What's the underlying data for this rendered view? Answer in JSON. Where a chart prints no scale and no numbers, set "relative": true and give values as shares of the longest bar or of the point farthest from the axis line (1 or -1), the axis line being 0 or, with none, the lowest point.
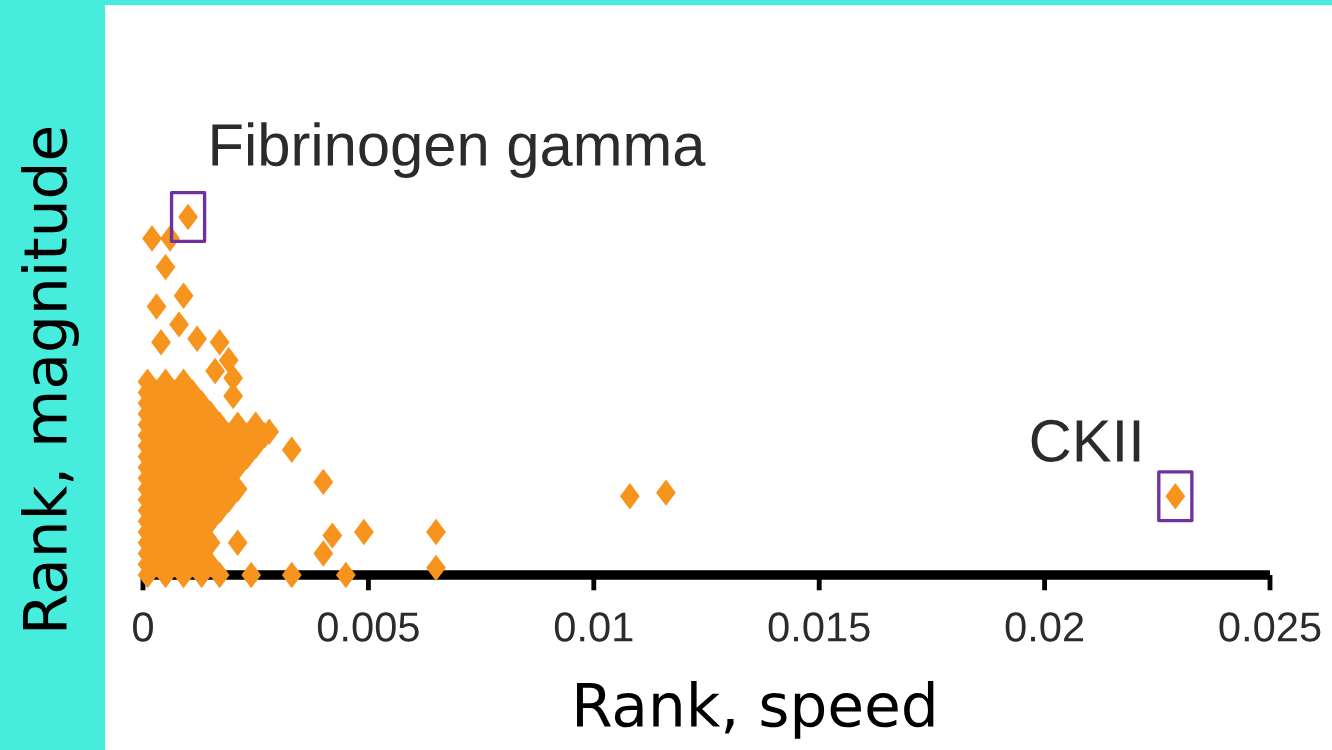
{
  "chart_data": {
    "type": "scatter",
    "relative": true,
    "xlabel": "Rank, speed",
    "ylabel": "Rank, magnitude",
    "xlim": [
      0,
      0.025
    ],
    "xticks": [
      0,
      0.005,
      0.01,
      0.015,
      0.02,
      0.025
    ],
    "tick_labels": "x",
    "marker": "diamond",
    "annotations": [
      {
        "text": "Fibrinogen gamma",
        "x": 0.001,
        "y": 1
      },
      {
        "text": "CKII",
        "x": 0.0229,
        "y": 0.22
      }
    ],
    "series": [
      {
        "color": "#f7941d",
        "x": [
          0.001,
          0.0229,
          0.0108,
          0.0116,
          0.0065,
          0.0065,
          0.0049,
          0.0045,
          0.0042,
          0.004,
          0.004,
          0.0033,
          0.0033,
          0.0024,
          0.0021,
          0.0002,
          0.0006,
          0.0005,
          0.0009,
          0.0003,
          0.0008,
          0.0004,
          0.0012,
          0.0017,
          0.0019,
          0.002,
          0.002,
          0.0016,
          0.0028,
          0.0001,
          0.0005,
          0.0009,
          0.0013,
          0.0017,
          0.0001,
          0.0003,
          0.0007,
          0.0011,
          0.0015,
          0.0001,
          0.0005,
          0.0009,
          0.0013,
          0.0001,
          0.0003,
          0.0007,
          0.0011,
          0.0015,
          0.0001,
          0.0005,
          0.0009,
          0.0013,
          0.0001,
          0.0003,
          0.0007,
          0.0011,
          0.0015,
          0.0001,
          0.0005,
          0.0009,
          0.0013,
          0.0017,
          0.0001,
          0.0003,
          0.0007,
          0.0011,
          0.0015,
          0.0019,
          0.0001,
          0.0005,
          0.0009,
          0.0013,
          0.0017,
          0.0021,
          0.0001,
          0.0003,
          0.0007,
          0.0011,
          0.0015,
          0.0019,
          0.0001,
          0.0005,
          0.0009,
          0.0013,
          0.0017,
          0.0021,
          0.0001,
          0.0003,
          0.0007,
          0.0011,
          0.0015,
          0.0019,
          0.0023,
          0.0001,
          0.0005,
          0.0009,
          0.0013,
          0.0017,
          0.0021,
          0.0025,
          0.0001,
          0.0003,
          0.0007,
          0.0011,
          0.0015,
          0.0019,
          0.0023,
          0.0027,
          0.0001,
          0.0005,
          0.0009,
          0.0013,
          0.0017,
          0.0021,
          0.0025,
          0.0001,
          0.0003,
          0.0007,
          0.0011,
          0.0015,
          0.0001,
          0.0005,
          0.0009,
          0.0013,
          0.0001,
          0.0003,
          0.0007,
          0.0011,
          0.0001,
          0.0005,
          0.0009
        ],
        "values": [
          1,
          0.22,
          0.22,
          0.23,
          0.12,
          0.02,
          0.12,
          0,
          0.11,
          0.06,
          0.26,
          0.35,
          0,
          0,
          0.09,
          0.94,
          0.94,
          0.86,
          0.78,
          0.75,
          0.7,
          0.65,
          0.66,
          0.65,
          0.6,
          0.55,
          0.5,
          0.57,
          0.4,
          0,
          0,
          0,
          0,
          0,
          0.03,
          0.03,
          0.03,
          0.03,
          0.03,
          0.06,
          0.06,
          0.06,
          0.06,
          0.09,
          0.09,
          0.09,
          0.09,
          0.09,
          0.12,
          0.12,
          0.12,
          0.12,
          0.15,
          0.15,
          0.15,
          0.15,
          0.15,
          0.18,
          0.18,
          0.18,
          0.18,
          0.18,
          0.21,
          0.21,
          0.21,
          0.21,
          0.21,
          0.21,
          0.24,
          0.24,
          0.24,
          0.24,
          0.24,
          0.24,
          0.27,
          0.27,
          0.27,
          0.27,
          0.27,
          0.27,
          0.3,
          0.3,
          0.3,
          0.3,
          0.3,
          0.3,
          0.33,
          0.33,
          0.33,
          0.33,
          0.33,
          0.33,
          0.33,
          0.36,
          0.36,
          0.36,
          0.36,
          0.36,
          0.36,
          0.36,
          0.39,
          0.39,
          0.39,
          0.39,
          0.39,
          0.39,
          0.39,
          0.39,
          0.42,
          0.42,
          0.42,
          0.42,
          0.42,
          0.42,
          0.42,
          0.45,
          0.45,
          0.45,
          0.45,
          0.45,
          0.48,
          0.48,
          0.48,
          0.48,
          0.51,
          0.51,
          0.51,
          0.51,
          0.54,
          0.54,
          0.54
        ]
      }
    ]
  }
}
